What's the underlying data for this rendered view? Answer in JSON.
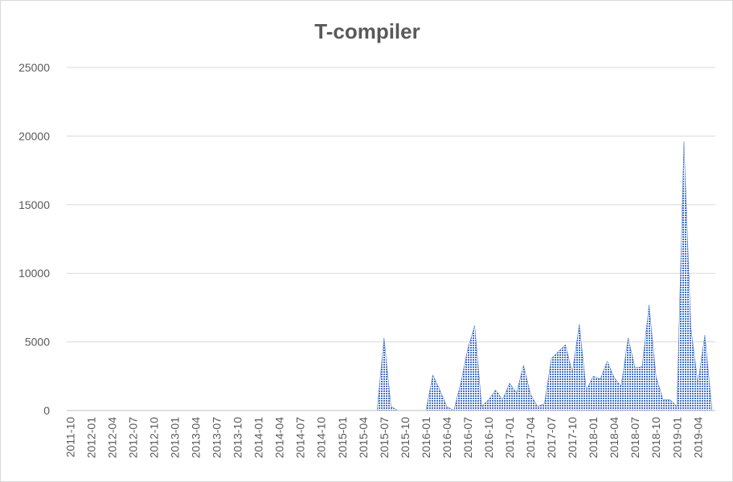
{
  "chart_data": {
    "type": "area",
    "title": "T-compiler",
    "color": "#4472c4",
    "grid": true,
    "ylim": [
      0,
      25000
    ],
    "yticks": [
      0,
      5000,
      10000,
      15000,
      20000,
      25000
    ],
    "categories": [
      "2011-10",
      null,
      null,
      "2012-01",
      null,
      null,
      "2012-04",
      null,
      null,
      "2012-07",
      null,
      null,
      "2012-10",
      null,
      null,
      "2013-01",
      null,
      null,
      "2013-04",
      null,
      null,
      "2013-07",
      null,
      null,
      "2013-10",
      null,
      null,
      "2014-01",
      null,
      null,
      "2014-04",
      null,
      null,
      "2014-07",
      null,
      null,
      "2014-10",
      null,
      null,
      "2015-01",
      null,
      null,
      "2015-04",
      null,
      null,
      "2015-07",
      null,
      null,
      "2015-10",
      null,
      null,
      "2016-01",
      null,
      null,
      "2016-04",
      null,
      null,
      "2016-07",
      null,
      null,
      "2016-10",
      null,
      null,
      "2017-01",
      null,
      null,
      "2017-04",
      null,
      null,
      "2017-07",
      null,
      null,
      "2017-10",
      null,
      null,
      "2018-01",
      null,
      null,
      "2018-04",
      null,
      null,
      "2018-07",
      null,
      null,
      "2018-10",
      null,
      null,
      "2019-01",
      null,
      null,
      "2019-04",
      null,
      null
    ],
    "values": [
      0,
      0,
      0,
      0,
      0,
      0,
      0,
      0,
      0,
      0,
      0,
      0,
      0,
      0,
      0,
      0,
      0,
      0,
      0,
      0,
      0,
      0,
      0,
      0,
      0,
      0,
      0,
      0,
      0,
      0,
      0,
      0,
      0,
      0,
      0,
      0,
      0,
      0,
      0,
      0,
      0,
      0,
      0,
      0,
      0,
      5300,
      300,
      0,
      0,
      0,
      0,
      0,
      2600,
      1500,
      300,
      0,
      2000,
      4500,
      6200,
      300,
      800,
      1500,
      800,
      2000,
      1300,
      3300,
      1200,
      300,
      500,
      3800,
      4300,
      4800,
      2800,
      6300,
      1500,
      2500,
      2300,
      3600,
      2400,
      1800,
      5300,
      3100,
      3200,
      7700,
      2500,
      800,
      800,
      300,
      19600,
      6000,
      2000,
      5500,
      200
    ]
  }
}
